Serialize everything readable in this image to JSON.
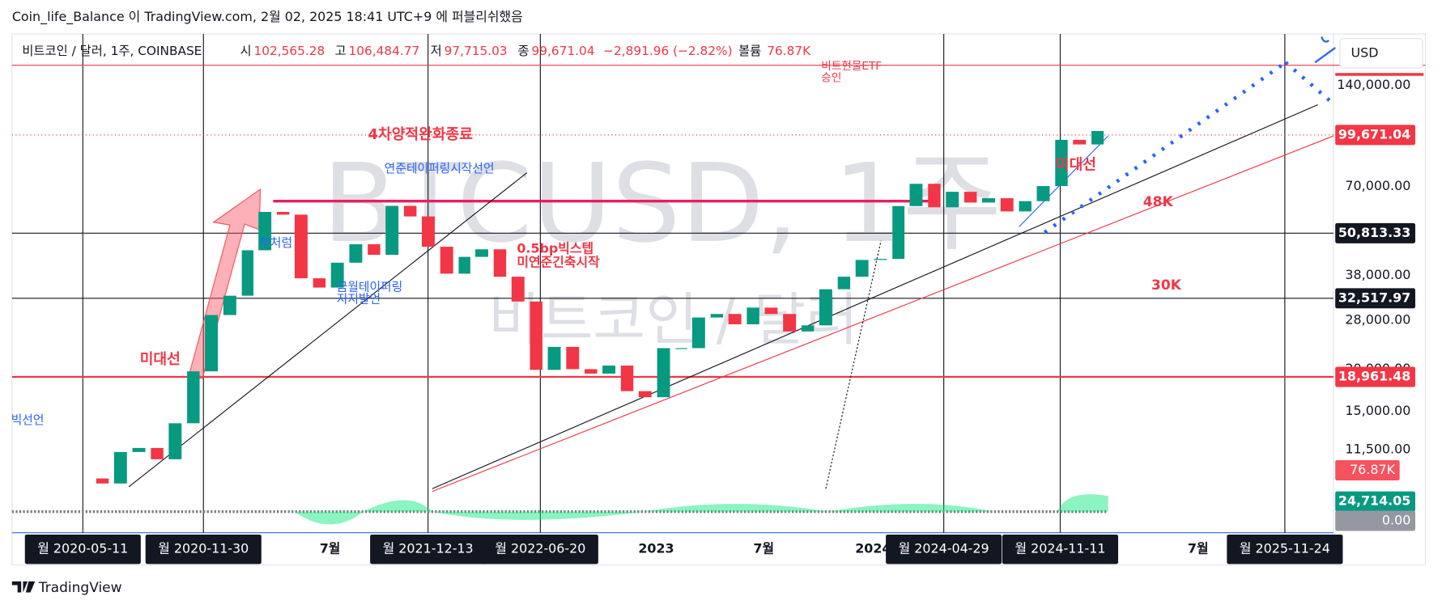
{
  "header": {
    "publisher": "Coin_life_Balance 이 TradingView.com, 2월 02, 2025 18:41 UTC+9 에 퍼블리쉬했음"
  },
  "symbol": {
    "name": "비트코인 / 달러, 1주, COINBASE",
    "open_label": "시",
    "open": "102,565.28",
    "high_label": "고",
    "high": "106,484.77",
    "low_label": "저",
    "low": "97,715.03",
    "close_label": "종",
    "close": "99,671.04",
    "change": "−2,891.96 (−2.82%)",
    "volume_label": "볼륨",
    "volume": "76.87K"
  },
  "currency": "USD",
  "watermark": {
    "symbol": "BTCUSD, 1주",
    "name": "비트코인 / 달러"
  },
  "price_axis": {
    "scale": "log",
    "ticks": [
      {
        "value": 140000,
        "label": "140,000.00"
      },
      {
        "value": 70000,
        "label": "70,000.00"
      },
      {
        "value": 38000,
        "label": "38,000.00"
      },
      {
        "value": 28000,
        "label": "28,000.00"
      },
      {
        "value": 20000,
        "label": "20,000.00"
      },
      {
        "value": 15000,
        "label": "15,000.00"
      },
      {
        "value": 11500,
        "label": "11,500.00"
      }
    ]
  },
  "price_tags": [
    {
      "value": 99671.04,
      "label": "99,671.04",
      "color": "#f23645"
    },
    {
      "value": 50813.33,
      "label": "50,813.33",
      "color": "#131722"
    },
    {
      "value": 32517.97,
      "label": "32,517.97",
      "color": "#131722"
    },
    {
      "value": 18961.48,
      "label": "18,961.48",
      "color": "#f23645"
    }
  ],
  "indicator_tags": [
    {
      "label": "76.87K",
      "color": "#f7525f"
    },
    {
      "label": "24,714.05",
      "color": "#089981"
    },
    {
      "label": "0.00",
      "color": "#9598a1"
    }
  ],
  "time_axis": {
    "ticks": [
      {
        "date": "2020-05-11",
        "label": "월 2020-05-11",
        "highlight": true
      },
      {
        "date": "2020-11-30",
        "label": "월 2020-11-30",
        "highlight": true
      },
      {
        "date": "2021-07-01",
        "label": "7월",
        "highlight": false
      },
      {
        "date": "2021-12-13",
        "label": "월 2021-12-13",
        "highlight": true
      },
      {
        "date": "2022-06-20",
        "label": "월 2022-06-20",
        "highlight": true
      },
      {
        "date": "2023-01-01",
        "label": "2023",
        "highlight": false
      },
      {
        "date": "2023-07-01",
        "label": "7월",
        "highlight": false
      },
      {
        "date": "2024-01-01",
        "label": "2024",
        "highlight": false
      },
      {
        "date": "2024-04-29",
        "label": "월 2024-04-29",
        "highlight": true
      },
      {
        "date": "2024-11-11",
        "label": "월 2024-11-11",
        "highlight": true
      },
      {
        "date": "2025-07-01",
        "label": "7월",
        "highlight": false
      },
      {
        "date": "2025-11-24",
        "label": "월 2025-11-24",
        "highlight": true
      }
    ]
  },
  "price_series": {
    "dates": [
      "2020-05",
      "2020-06",
      "2020-07",
      "2020-08",
      "2020-09",
      "2020-10",
      "2020-11",
      "2020-12",
      "2021-01",
      "2021-02",
      "2021-03",
      "2021-04",
      "2021-05",
      "2021-06",
      "2021-07",
      "2021-08",
      "2021-09",
      "2021-10",
      "2021-11",
      "2021-12",
      "2022-01",
      "2022-02",
      "2022-03",
      "2022-04",
      "2022-05",
      "2022-06",
      "2022-07",
      "2022-08",
      "2022-09",
      "2022-10",
      "2022-11",
      "2022-12",
      "2023-01",
      "2023-02",
      "2023-03",
      "2023-04",
      "2023-05",
      "2023-06",
      "2023-07",
      "2023-08",
      "2023-09",
      "2023-10",
      "2023-11",
      "2023-12",
      "2024-01",
      "2024-02",
      "2024-03",
      "2024-04",
      "2024-05",
      "2024-06",
      "2024-07",
      "2024-08",
      "2024-09",
      "2024-10",
      "2024-11",
      "2024-12",
      "2025-01"
    ],
    "closes": [
      9450,
      9130,
      11330,
      11650,
      10780,
      13800,
      19700,
      28990,
      33100,
      45200,
      58800,
      57700,
      37300,
      35000,
      41500,
      47100,
      43800,
      61300,
      57000,
      46300,
      38500,
      43200,
      45500,
      37700,
      31800,
      19900,
      23300,
      20000,
      19400,
      20500,
      17200,
      16500,
      23100,
      23100,
      28500,
      29200,
      27200,
      30500,
      29200,
      25900,
      27000,
      34600,
      37700,
      42300,
      42600,
      61200,
      71300,
      60700,
      67500,
      62700,
      64600,
      59000,
      63300,
      70200,
      96400,
      93400,
      102400
    ]
  },
  "annotations": [
    {
      "text": "4차양적완화종료",
      "color": "#f23645"
    },
    {
      "text": "연준테이퍼링시작선언",
      "color": "#2962ff"
    },
    {
      "text": "0.5bp빅스텝",
      "color": "#f23645"
    },
    {
      "text": "미연준긴축시작",
      "color": "#f23645"
    },
    {
      "text": "부처럼",
      "color": "#2962ff"
    },
    {
      "text": "금월테이퍼링",
      "color": "#2962ff"
    },
    {
      "text": "지지발언",
      "color": "#2962ff"
    },
    {
      "text": "미대선",
      "color": "#f23645"
    },
    {
      "text": "미대선",
      "color": "#f23645"
    },
    {
      "text": "48K",
      "color": "#f23645"
    },
    {
      "text": "30K",
      "color": "#f23645"
    },
    {
      "text": "빅선언",
      "color": "#2962ff"
    },
    {
      "text": "비트현물ETF",
      "color": "#f23645"
    },
    {
      "text": "승인",
      "color": "#f23645"
    }
  ],
  "footer": "TradingView"
}
